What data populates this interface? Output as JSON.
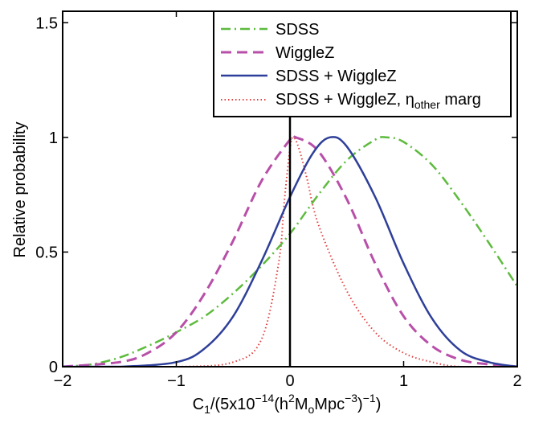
{
  "chart_data": {
    "type": "line",
    "xlabel": "C1/(5x10−14(h2MoMpc−3)−1)",
    "ylabel": "Relative probability",
    "xlim": [
      -2,
      2
    ],
    "ylim": [
      0,
      1.55
    ],
    "xticks": [
      {
        "value": -2,
        "label": "−2"
      },
      {
        "value": -1,
        "label": "−1"
      },
      {
        "value": 0,
        "label": "0"
      },
      {
        "value": 1,
        "label": "1"
      },
      {
        "value": 2,
        "label": "2"
      }
    ],
    "yticks": [
      {
        "value": 0,
        "label": "0"
      },
      {
        "value": 0.5,
        "label": "0.5"
      },
      {
        "value": 1,
        "label": "1"
      },
      {
        "value": 1.5,
        "label": "1.5"
      }
    ],
    "legend_position": "top-right",
    "vertical_reference_line": {
      "x": 0
    },
    "series": [
      {
        "name": "SDSS",
        "color": "#5dbb3d",
        "style": "dash-dot",
        "x": [
          -2.0,
          -1.75,
          -1.5,
          -1.25,
          -1.0,
          -0.75,
          -0.5,
          -0.25,
          0.0,
          0.25,
          0.5,
          0.75,
          0.85,
          1.0,
          1.25,
          1.5,
          1.75,
          2.0
        ],
        "y": [
          0.0,
          0.01,
          0.04,
          0.09,
          0.15,
          0.22,
          0.32,
          0.44,
          0.58,
          0.75,
          0.9,
          0.99,
          1.0,
          0.98,
          0.88,
          0.72,
          0.54,
          0.35
        ]
      },
      {
        "name": "WiggleZ",
        "color": "#b84fa8",
        "style": "dashed",
        "x": [
          -2.0,
          -1.5,
          -1.25,
          -1.0,
          -0.75,
          -0.5,
          -0.25,
          0.0,
          0.05,
          0.25,
          0.5,
          0.75,
          1.0,
          1.25,
          1.5,
          1.75,
          2.0
        ],
        "y": [
          0.0,
          0.02,
          0.06,
          0.15,
          0.32,
          0.55,
          0.81,
          0.99,
          1.0,
          0.94,
          0.73,
          0.45,
          0.22,
          0.09,
          0.03,
          0.01,
          0.0
        ],
        "legend_label": "WiggleZ"
      },
      {
        "name": "SDSS + WiggleZ",
        "color": "#2e3f99",
        "style": "solid",
        "x": [
          -2.0,
          -1.5,
          -1.0,
          -0.75,
          -0.5,
          -0.25,
          0.0,
          0.2,
          0.35,
          0.5,
          0.75,
          1.0,
          1.25,
          1.5,
          1.75,
          2.0
        ],
        "y": [
          0.0,
          0.0,
          0.02,
          0.08,
          0.22,
          0.46,
          0.74,
          0.93,
          1.0,
          0.96,
          0.74,
          0.45,
          0.21,
          0.07,
          0.02,
          0.0
        ]
      },
      {
        "name": "SDSS + WiggleZ, ηother marg",
        "color": "#e04040",
        "style": "dotted",
        "x": [
          -2.0,
          -1.0,
          -0.5,
          -0.25,
          -0.1,
          -0.05,
          0.0,
          0.03,
          0.08,
          0.15,
          0.25,
          0.5,
          0.75,
          1.0,
          1.25,
          1.5,
          2.0
        ],
        "y": [
          0.0,
          0.0,
          0.02,
          0.12,
          0.45,
          0.72,
          0.95,
          1.0,
          0.95,
          0.82,
          0.62,
          0.33,
          0.15,
          0.06,
          0.02,
          0.0,
          0.0
        ]
      }
    ]
  },
  "axis_text": {
    "x_parts": [
      "C",
      "1",
      "/(5x10",
      "−14",
      "(h",
      "2",
      "M",
      "o",
      "Mpc",
      "−3",
      ")",
      "−1",
      ")"
    ],
    "y": "Relative probability"
  },
  "legend": {
    "items": [
      {
        "label": "SDSS"
      },
      {
        "label": "WiggleZ"
      },
      {
        "label": "SDSS + WiggleZ"
      },
      {
        "label_parts": [
          "SDSS + WiggleZ, η",
          "other",
          " marg"
        ]
      }
    ]
  }
}
